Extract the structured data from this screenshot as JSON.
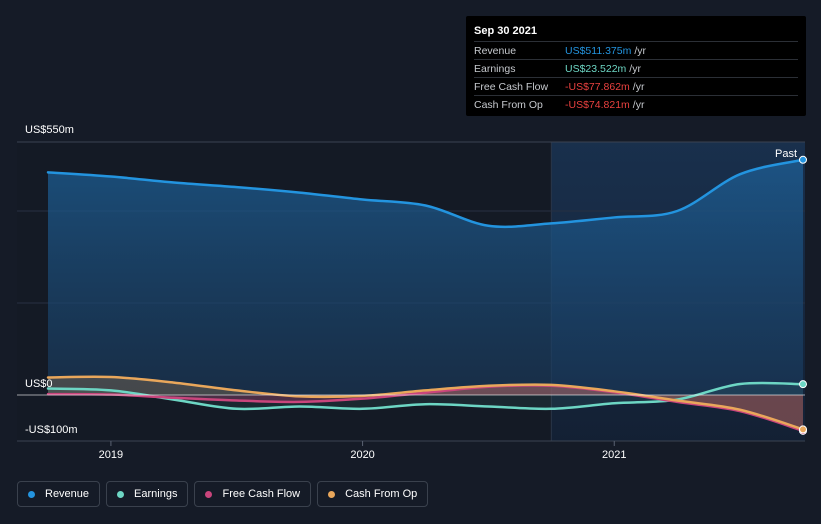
{
  "tooltip": {
    "date": "Sep 30 2021",
    "rows": [
      {
        "label": "Revenue",
        "value": "US$511.375m",
        "unit": "/yr",
        "color": "#2394df"
      },
      {
        "label": "Earnings",
        "value": "US$23.522m",
        "unit": "/yr",
        "color": "#6dd6c4"
      },
      {
        "label": "Free Cash Flow",
        "value": "-US$77.862m",
        "unit": "/yr",
        "color": "#e9413f"
      },
      {
        "label": "Cash From Op",
        "value": "-US$74.821m",
        "unit": "/yr",
        "color": "#e9413f"
      }
    ]
  },
  "legend": [
    {
      "label": "Revenue",
      "color": "#2394df"
    },
    {
      "label": "Earnings",
      "color": "#6dd6c4"
    },
    {
      "label": "Free Cash Flow",
      "color": "#c9457c"
    },
    {
      "label": "Cash From Op",
      "color": "#e9a75b"
    }
  ],
  "chart_data": {
    "type": "area",
    "y_labels": [
      "US$550m",
      "US$0",
      "-US$100m"
    ],
    "ylim": [
      -100,
      550
    ],
    "xlim": [
      2018.75,
      2021.75
    ],
    "x_ticks": [
      2019,
      2020,
      2021
    ],
    "x_tick_labels": [
      "2019",
      "2020",
      "2021"
    ],
    "past_label": "Past",
    "past_start": 2020.75,
    "series": [
      {
        "name": "Revenue",
        "color": "#2394df",
        "x": [
          2018.75,
          2019.0,
          2019.25,
          2019.5,
          2019.75,
          2020.0,
          2020.25,
          2020.5,
          2020.75,
          2021.0,
          2021.25,
          2021.5,
          2021.75
        ],
        "y": [
          484,
          475,
          462,
          452,
          440,
          425,
          412,
          368,
          373,
          386,
          400,
          480,
          511.375
        ]
      },
      {
        "name": "Earnings",
        "color": "#6dd6c4",
        "x": [
          2018.75,
          2019.0,
          2019.25,
          2019.5,
          2019.75,
          2020.0,
          2020.25,
          2020.5,
          2020.75,
          2021.0,
          2021.25,
          2021.5,
          2021.75
        ],
        "y": [
          14,
          10,
          -10,
          -30,
          -25,
          -30,
          -20,
          -25,
          -30,
          -18,
          -10,
          24,
          23.522
        ]
      },
      {
        "name": "Free Cash Flow",
        "color": "#c9457c",
        "x": [
          2018.75,
          2019.0,
          2019.25,
          2019.5,
          2019.75,
          2020.0,
          2020.25,
          2020.5,
          2020.75,
          2021.0,
          2021.25,
          2021.5,
          2021.75
        ],
        "y": [
          2,
          1,
          -6,
          -12,
          -15,
          -8,
          5,
          18,
          20,
          6,
          -15,
          -35,
          -77.862
        ]
      },
      {
        "name": "Cash From Op",
        "color": "#e9a75b",
        "x": [
          2018.75,
          2019.0,
          2019.25,
          2019.5,
          2019.75,
          2020.0,
          2020.25,
          2020.5,
          2020.75,
          2021.0,
          2021.25,
          2021.5,
          2021.75
        ],
        "y": [
          38,
          39,
          27,
          10,
          -3,
          -2,
          10,
          20,
          22,
          8,
          -12,
          -32,
          -74.821
        ]
      }
    ]
  }
}
